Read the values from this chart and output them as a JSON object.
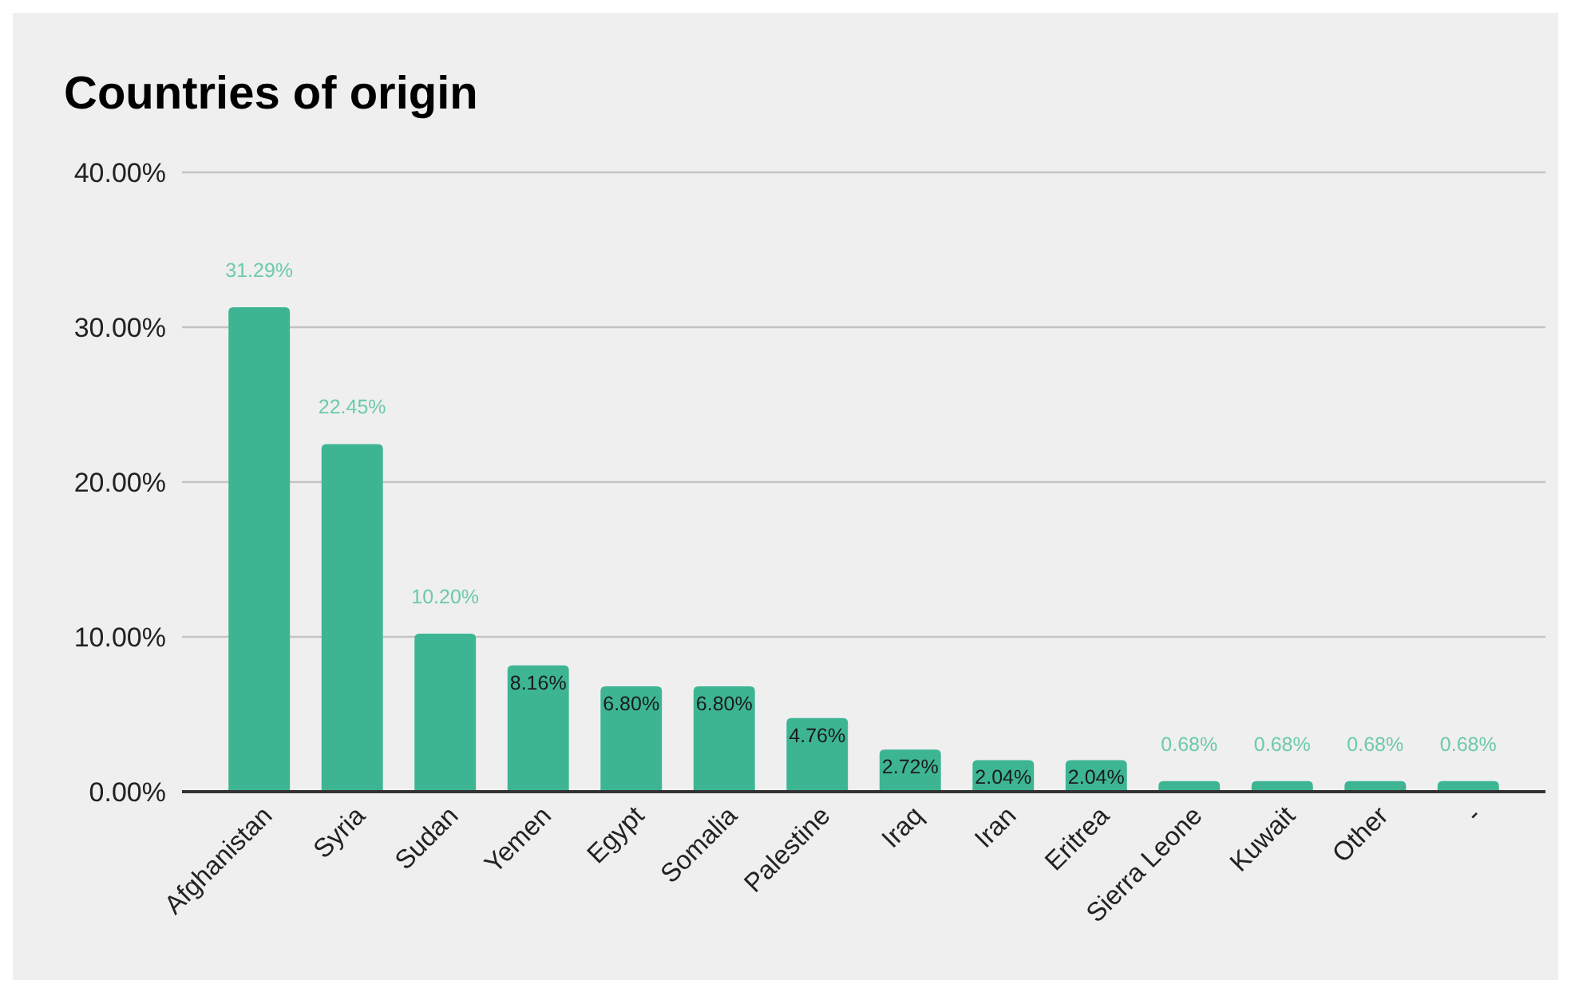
{
  "chart_data": {
    "type": "bar",
    "title": "Countries of origin",
    "categories": [
      "Afghanistan",
      "Syria",
      "Sudan",
      "Yemen",
      "Egypt",
      "Somalia",
      "Palestine",
      "Iraq",
      "Iran",
      "Eritrea",
      "Sierra Leone",
      "Kuwait",
      "Other",
      "-"
    ],
    "values": [
      31.29,
      22.45,
      10.2,
      8.16,
      6.8,
      6.8,
      4.76,
      2.72,
      2.04,
      2.04,
      0.68,
      0.68,
      0.68,
      0.68
    ],
    "value_labels": [
      "31.29%",
      "22.45%",
      "10.20%",
      "8.16%",
      "6.80%",
      "6.80%",
      "4.76%",
      "2.72%",
      "2.04%",
      "2.04%",
      "0.68%",
      "0.68%",
      "0.68%",
      "0.68%"
    ],
    "color": "#3db593",
    "ylim": [
      0,
      40
    ],
    "yticks": [
      {
        "value": 0,
        "label": "0.00%"
      },
      {
        "value": 10,
        "label": "10.00%"
      },
      {
        "value": 20,
        "label": "20.00%"
      },
      {
        "value": 30,
        "label": "30.00%"
      },
      {
        "value": 40,
        "label": "40.00%"
      }
    ],
    "grid": "y"
  }
}
